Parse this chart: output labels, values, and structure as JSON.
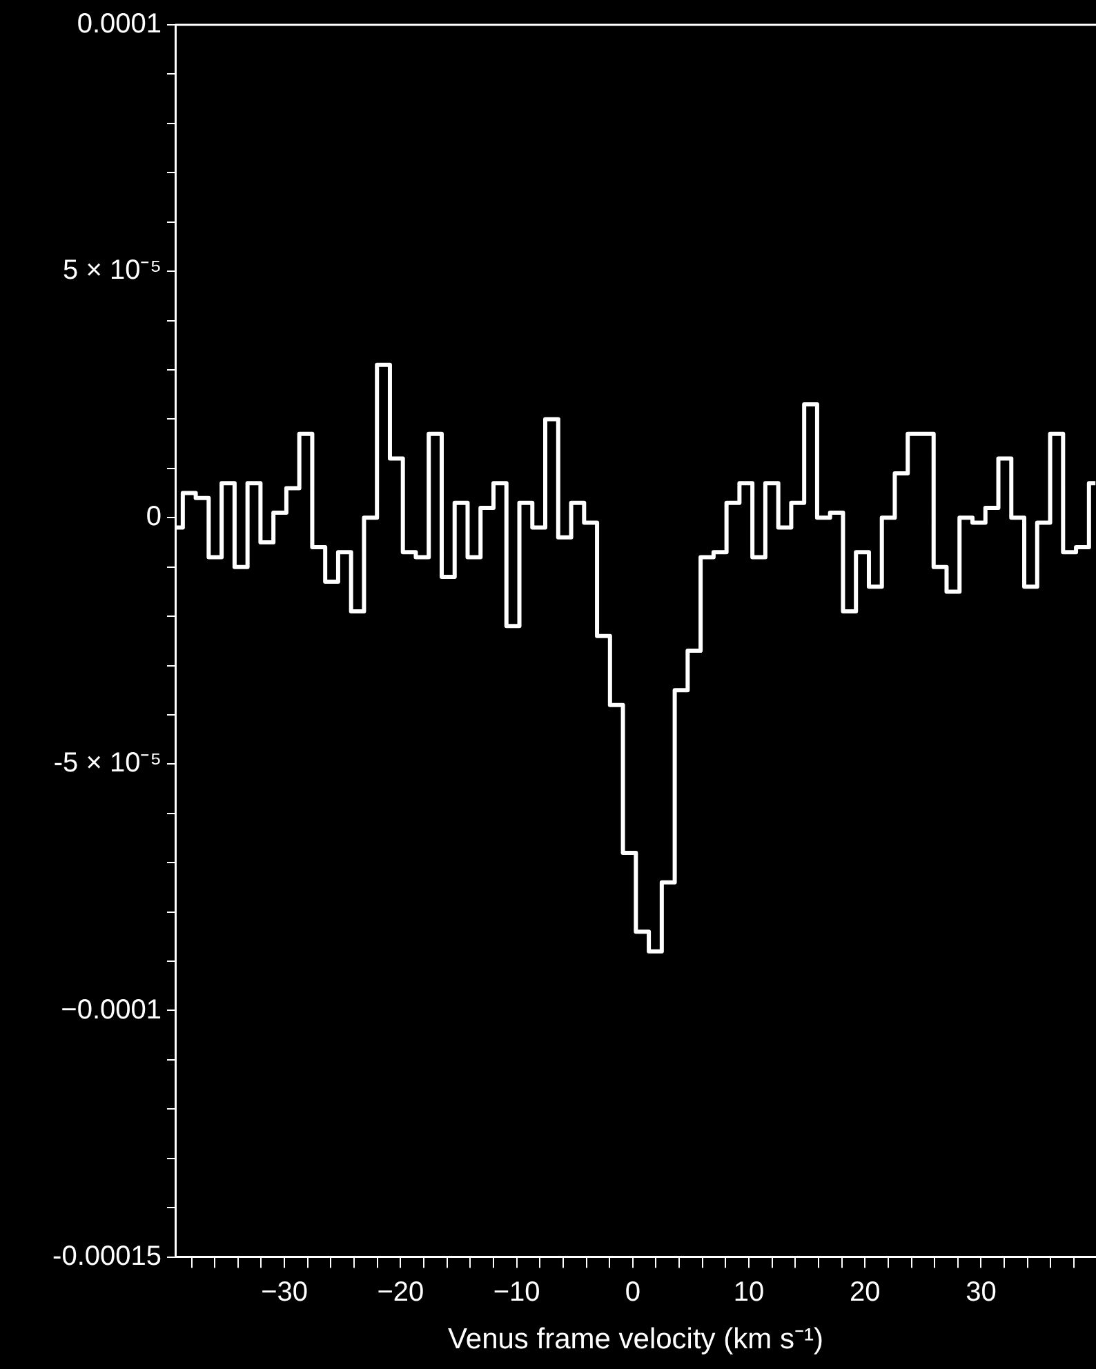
{
  "chart_data": {
    "type": "step",
    "xlabel": "Venus frame velocity (km s⁻¹)",
    "x": [
      -39.31,
      -38.2,
      -37.08,
      -35.97,
      -34.85,
      -33.74,
      -32.62,
      -31.51,
      -30.39,
      -29.28,
      -28.16,
      -27.05,
      -25.93,
      -24.82,
      -23.7,
      -22.59,
      -21.47,
      -20.36,
      -19.24,
      -18.13,
      -17.01,
      -15.9,
      -14.78,
      -13.67,
      -12.55,
      -11.44,
      -10.32,
      -9.21,
      -8.09,
      -6.98,
      -5.86,
      -4.75,
      -3.63,
      -2.52,
      -1.4,
      -0.29,
      0.83,
      1.94,
      3.06,
      4.17,
      5.29,
      6.4,
      7.52,
      8.63,
      9.75,
      10.86,
      11.98,
      13.09,
      14.21,
      15.32,
      16.44,
      17.55,
      18.67,
      19.78,
      20.9,
      22.01,
      23.13,
      24.24,
      25.36,
      26.47,
      27.59,
      28.7,
      29.82,
      30.93,
      32.05,
      33.16,
      34.28,
      35.39,
      36.51,
      37.62,
      38.74,
      39.85
    ],
    "series": [
      {
        "color": "#ffffff",
        "values": [
          -2e-06,
          5e-06,
          4e-06,
          -8e-06,
          7e-06,
          -1e-05,
          7e-06,
          -5e-06,
          1e-06,
          6e-06,
          1.7e-05,
          -6e-06,
          -1.3e-05,
          -7e-06,
          -1.9e-05,
          0,
          3.1e-05,
          1.2e-05,
          -7e-06,
          -8e-06,
          1.7e-05,
          -1.2e-05,
          3e-06,
          -8e-06,
          2e-06,
          7e-06,
          -2.2e-05,
          3e-06,
          -2e-06,
          2e-05,
          -4e-06,
          3e-06,
          -1e-06,
          -2.4e-05,
          -3.8e-05,
          -6.8e-05,
          -8.4e-05,
          -8.8e-05,
          -7.4e-05,
          -3.5e-05,
          -2.7e-05,
          -8e-06,
          -7e-06,
          3e-06,
          7e-06,
          -8e-06,
          7e-06,
          -2e-06,
          3e-06,
          2.3e-05,
          0,
          1e-06,
          -1.9e-05,
          -7e-06,
          -1.4e-05,
          0,
          9e-06,
          1.7e-05,
          1.7e-05,
          -1e-05,
          -1.5e-05,
          0,
          -1e-06,
          2e-06,
          1.2e-05,
          0,
          -1.4e-05,
          -1e-06,
          1.7e-05,
          -7e-06,
          -6e-06,
          7e-06
        ]
      }
    ],
    "xlim": [
      -39.4,
      39.9
    ],
    "xticks": [
      {
        "value": -38,
        "label": null
      },
      {
        "value": -36,
        "label": null
      },
      {
        "value": -34,
        "label": null
      },
      {
        "value": -32,
        "label": null
      },
      {
        "value": -30,
        "label": "−30"
      },
      {
        "value": -28,
        "label": null
      },
      {
        "value": -26,
        "label": null
      },
      {
        "value": -24,
        "label": null
      },
      {
        "value": -22,
        "label": null
      },
      {
        "value": -20,
        "label": "−20"
      },
      {
        "value": -18,
        "label": null
      },
      {
        "value": -16,
        "label": null
      },
      {
        "value": -14,
        "label": null
      },
      {
        "value": -12,
        "label": null
      },
      {
        "value": -10,
        "label": "−10"
      },
      {
        "value": -8,
        "label": null
      },
      {
        "value": -6,
        "label": null
      },
      {
        "value": -4,
        "label": null
      },
      {
        "value": -2,
        "label": null
      },
      0,
      {
        "value": 2,
        "label": null
      },
      {
        "value": 4,
        "label": null
      },
      {
        "value": 6,
        "label": null
      },
      {
        "value": 8,
        "label": null
      },
      10,
      {
        "value": 12,
        "label": null
      },
      {
        "value": 14,
        "label": null
      },
      {
        "value": 16,
        "label": null
      },
      {
        "value": 18,
        "label": null
      },
      20,
      {
        "value": 22,
        "label": null
      },
      {
        "value": 24,
        "label": null
      },
      {
        "value": 26,
        "label": null
      },
      {
        "value": 28,
        "label": null
      },
      30,
      {
        "value": 32,
        "label": null
      },
      {
        "value": 34,
        "label": null
      },
      {
        "value": 36,
        "label": null
      },
      {
        "value": 38,
        "label": null
      }
    ],
    "ylim": [
      -0.00015,
      0.0001
    ],
    "yticks": [
      {
        "value": -0.00015,
        "label": "-0.00015"
      },
      {
        "value": -0.00014,
        "label": null
      },
      {
        "value": -0.00013,
        "label": null
      },
      {
        "value": -0.00012,
        "label": null
      },
      {
        "value": -0.00011,
        "label": null
      },
      {
        "value": -0.0001,
        "label": "−0.0001"
      },
      {
        "value": -9e-05,
        "label": null
      },
      {
        "value": -8e-05,
        "label": null
      },
      {
        "value": -7e-05,
        "label": null
      },
      {
        "value": -6e-05,
        "label": null
      },
      {
        "value": -5e-05,
        "label": "-5 × 10⁻⁵"
      },
      {
        "value": -4e-05,
        "label": null
      },
      {
        "value": -3e-05,
        "label": null
      },
      {
        "value": -2e-05,
        "label": null
      },
      {
        "value": -1e-05,
        "label": null
      },
      0,
      {
        "value": 1e-05,
        "label": null
      },
      {
        "value": 2e-05,
        "label": null
      },
      {
        "value": 3e-05,
        "label": null
      },
      {
        "value": 4e-05,
        "label": null
      },
      {
        "value": 5e-05,
        "label": "5 × 10⁻⁵"
      },
      {
        "value": 6e-05,
        "label": null
      },
      {
        "value": 7e-05,
        "label": null
      },
      {
        "value": 8e-05,
        "label": null
      },
      {
        "value": 9e-05,
        "label": null
      },
      {
        "value": 0.0001,
        "label": "0.0001"
      }
    ],
    "grid": false,
    "legend": false
  }
}
